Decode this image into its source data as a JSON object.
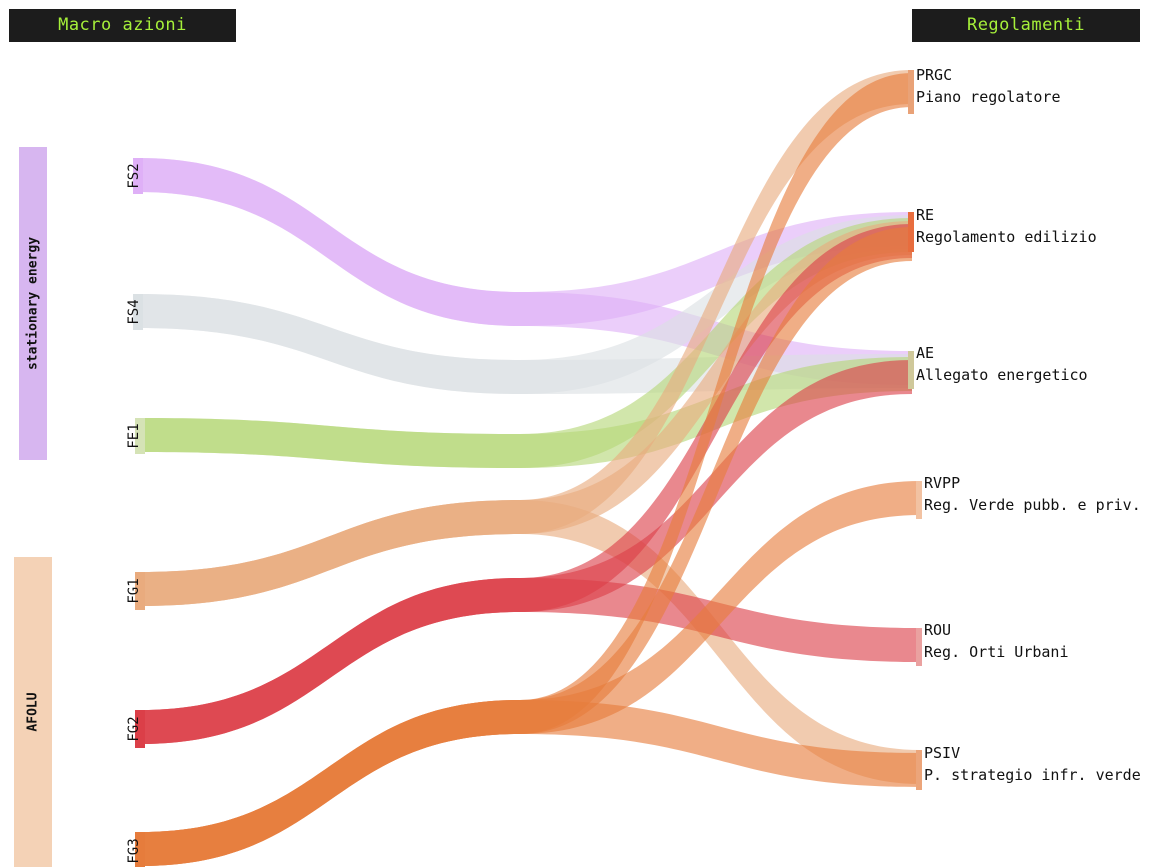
{
  "headers": {
    "left": "Macro azioni",
    "right": "Regolamenti"
  },
  "groups": [
    {
      "id": "stationary",
      "label": "stationary energy",
      "color": "#d7b6f0",
      "members": [
        "FS2",
        "FS4",
        "FE1"
      ]
    },
    {
      "id": "afolu",
      "label": "AFOLU",
      "color": "#f4d2b6",
      "members": [
        "FG1",
        "FG2",
        "FG3"
      ]
    }
  ],
  "sources": [
    {
      "id": "FS2",
      "label": "FS2",
      "color": "#dfb0f7"
    },
    {
      "id": "FS4",
      "label": "FS4",
      "color": "#dbe1e4"
    },
    {
      "id": "FE1",
      "label": "FE1",
      "color": "#d5e3b6"
    },
    {
      "id": "FG1",
      "label": "FG1",
      "color": "#e9ab7e"
    },
    {
      "id": "FG2",
      "label": "FG2",
      "color": "#db3f48"
    },
    {
      "id": "FG3",
      "label": "FG3",
      "color": "#e67c3c"
    }
  ],
  "targets": [
    {
      "id": "PRGC",
      "code": "PRGC",
      "name": "Piano regolatore"
    },
    {
      "id": "RE",
      "code": "RE",
      "name": "Regolamento edilizio"
    },
    {
      "id": "AE",
      "code": "AE",
      "name": "Allegato energetico"
    },
    {
      "id": "RVPP",
      "code": "RVPP",
      "name": "Reg. Verde pubb. e priv."
    },
    {
      "id": "ROU",
      "code": "ROU",
      "name": "Reg. Orti Urbani"
    },
    {
      "id": "PSIV",
      "code": "PSIV",
      "name": "P. strategio infr. verde"
    }
  ],
  "flows": [
    {
      "from": "FS2",
      "to": "RE",
      "color": "#dfb0f7"
    },
    {
      "from": "FS2",
      "to": "AE",
      "color": "#dfb0f7"
    },
    {
      "from": "FS4",
      "to": "RE",
      "color": "#dbe1e4"
    },
    {
      "from": "FS4",
      "to": "AE",
      "color": "#dbe1e4"
    },
    {
      "from": "FE1",
      "to": "RE",
      "color": "#b5d678"
    },
    {
      "from": "FE1",
      "to": "AE",
      "color": "#b5d678"
    },
    {
      "from": "FG1",
      "to": "PRGC",
      "color": "#e9ab7e"
    },
    {
      "from": "FG1",
      "to": "RE",
      "color": "#e9ab7e"
    },
    {
      "from": "FG1",
      "to": "PSIV",
      "color": "#e9ab7e"
    },
    {
      "from": "FG2",
      "to": "RE",
      "color": "#db3f48"
    },
    {
      "from": "FG2",
      "to": "AE",
      "color": "#db3f48"
    },
    {
      "from": "FG2",
      "to": "ROU",
      "color": "#db3f48"
    },
    {
      "from": "FG3",
      "to": "PRGC",
      "color": "#e67c3c"
    },
    {
      "from": "FG3",
      "to": "RE",
      "color": "#e67c3c"
    },
    {
      "from": "FG3",
      "to": "RVPP",
      "color": "#e67c3c"
    },
    {
      "from": "FG3",
      "to": "PSIV",
      "color": "#e67c3c"
    }
  ]
}
